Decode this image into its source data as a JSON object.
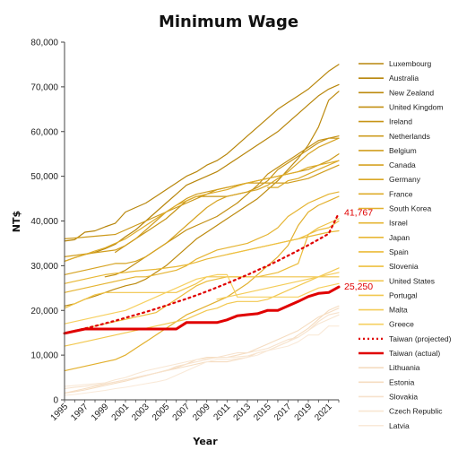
{
  "chart_data": {
    "type": "line",
    "title": "Minimum Wage",
    "xlabel": "Year",
    "ylabel": "NT$",
    "xlim": [
      1995,
      2022
    ],
    "ylim": [
      0,
      80000
    ],
    "grid": false,
    "legend": "right",
    "x": [
      1995,
      1996,
      1997,
      1998,
      1999,
      2000,
      2001,
      2002,
      2003,
      2004,
      2005,
      2006,
      2007,
      2008,
      2009,
      2010,
      2011,
      2012,
      2013,
      2014,
      2015,
      2016,
      2017,
      2018,
      2019,
      2020,
      2021,
      2022
    ],
    "x_ticks": [
      "1995",
      "1997",
      "1999",
      "2001",
      "2003",
      "2005",
      "2007",
      "2009",
      "2011",
      "2013",
      "2015",
      "2017",
      "2019",
      "2021"
    ],
    "y_ticks": [
      "0",
      "10,000",
      "20,000",
      "30,000",
      "40,000",
      "50,000",
      "60,000",
      "70,000",
      "80,000"
    ],
    "y_tick_values": [
      0,
      10000,
      20000,
      30000,
      40000,
      50000,
      60000,
      70000,
      80000
    ],
    "annotations": [
      {
        "text": "41,767",
        "x": 2022,
        "y": 41767,
        "color": "#e00000"
      },
      {
        "text": "25,250",
        "x": 2022,
        "y": 25250,
        "color": "#e00000"
      }
    ],
    "series": [
      {
        "name": "Luxembourg",
        "color": "#b8860b",
        "width": 1.2,
        "values": [
          35500,
          35800,
          37500,
          37800,
          38700,
          39500,
          42000,
          43000,
          44000,
          45500,
          47000,
          48500,
          50000,
          51000,
          52500,
          53500,
          55000,
          57000,
          59000,
          61000,
          63000,
          65000,
          66500,
          68000,
          69500,
          71500,
          73500,
          75000
        ]
      },
      {
        "name": "Australia",
        "color": "#b8860b",
        "width": 1.2,
        "values": [
          31000,
          31800,
          32500,
          33000,
          33800,
          34800,
          36500,
          38000,
          40000,
          42000,
          44000,
          46000,
          48000,
          49000,
          50000,
          51000,
          52500,
          54000,
          55500,
          57000,
          58500,
          60000,
          62000,
          64000,
          66000,
          68000,
          69500,
          70500
        ]
      },
      {
        "name": "New Zealand",
        "color": "#bd8a0e",
        "width": 1.2,
        "values": [
          21000,
          21500,
          22500,
          23200,
          24000,
          24800,
          25500,
          26000,
          27000,
          28500,
          30000,
          32000,
          34000,
          36000,
          37500,
          39000,
          40500,
          42000,
          43500,
          45000,
          47000,
          49000,
          51500,
          54000,
          57000,
          61000,
          67000,
          69000
        ]
      },
      {
        "name": "United Kingdom",
        "color": "#c28f12",
        "width": 1.2,
        "values": [
          null,
          null,
          null,
          null,
          27500,
          28000,
          29000,
          30500,
          32000,
          33500,
          35000,
          36500,
          38000,
          39000,
          40000,
          41000,
          42500,
          44000,
          46000,
          48000,
          50500,
          52000,
          53500,
          55000,
          56500,
          58000,
          58500,
          59000
        ]
      },
      {
        "name": "Ireland",
        "color": "#c79416",
        "width": 1.2,
        "values": [
          null,
          null,
          null,
          null,
          null,
          33000,
          34500,
          36000,
          37500,
          39000,
          40500,
          42500,
          44500,
          45500,
          45500,
          45500,
          45500,
          46000,
          46500,
          47500,
          49000,
          51500,
          53000,
          54500,
          56000,
          57500,
          58500,
          58500
        ]
      },
      {
        "name": "Netherlands",
        "color": "#cc991a",
        "width": 1.2,
        "values": [
          36000,
          36200,
          36400,
          36600,
          36800,
          37000,
          38000,
          39000,
          40000,
          41000,
          42000,
          43000,
          44000,
          45000,
          46000,
          47000,
          47500,
          48000,
          48500,
          49000,
          49500,
          50000,
          50500,
          51000,
          51500,
          52500,
          53500,
          55000
        ]
      },
      {
        "name": "Belgium",
        "color": "#d19e1e",
        "width": 1.2,
        "values": [
          32000,
          32300,
          32600,
          32900,
          33200,
          33500,
          34500,
          36000,
          38000,
          40000,
          42000,
          43500,
          45000,
          46000,
          46500,
          47000,
          47500,
          48000,
          48500,
          48500,
          48500,
          48500,
          48500,
          49000,
          49500,
          50500,
          51500,
          52500
        ]
      },
      {
        "name": "Canada",
        "color": "#d6a322",
        "width": 1.2,
        "values": [
          28000,
          28500,
          29000,
          29500,
          30000,
          30500,
          30500,
          31000,
          32000,
          33500,
          35000,
          37000,
          39000,
          41000,
          43000,
          44500,
          45500,
          46000,
          46500,
          47000,
          48000,
          49500,
          51000,
          53000,
          55000,
          56500,
          57500,
          58500
        ]
      },
      {
        "name": "Germany",
        "color": "#daa826",
        "width": 1.2,
        "values": [
          null,
          null,
          null,
          null,
          null,
          null,
          null,
          null,
          null,
          null,
          null,
          null,
          null,
          null,
          null,
          null,
          null,
          null,
          null,
          null,
          47500,
          47500,
          49000,
          49500,
          50500,
          51500,
          52500,
          53500
        ]
      },
      {
        "name": "France",
        "color": "#deac2a",
        "width": 1.2,
        "values": [
          31000,
          31800,
          32500,
          33300,
          34000,
          35000,
          36000,
          37500,
          39000,
          40500,
          42000,
          43500,
          44500,
          45500,
          46000,
          46500,
          47000,
          47800,
          48500,
          49000,
          49500,
          50000,
          50500,
          51000,
          52000,
          52500,
          53000,
          53500
        ]
      },
      {
        "name": "South Korea",
        "color": "#e2b02e",
        "width": 1.2,
        "values": [
          6500,
          7000,
          7500,
          8000,
          8500,
          9000,
          10000,
          11500,
          13000,
          14500,
          16000,
          17500,
          19000,
          20000,
          21000,
          22000,
          23000,
          24500,
          26000,
          28000,
          30000,
          32000,
          34500,
          39000,
          42000,
          43500,
          44500,
          45500
        ]
      },
      {
        "name": "Israel",
        "color": "#e5b432",
        "width": 1.2,
        "values": [
          24000,
          24500,
          25000,
          25500,
          26000,
          26500,
          27000,
          27500,
          27500,
          28000,
          28500,
          29000,
          30000,
          31500,
          32500,
          33500,
          34000,
          34500,
          35000,
          36000,
          37000,
          38500,
          41000,
          42500,
          44000,
          45000,
          46000,
          46500
        ]
      },
      {
        "name": "Japan",
        "color": "#e8b836",
        "width": 1.2,
        "values": [
          26000,
          26500,
          27000,
          27500,
          28000,
          28300,
          28500,
          28800,
          29000,
          29200,
          29500,
          29800,
          30200,
          30800,
          31500,
          32000,
          32500,
          33000,
          33500,
          34000,
          34500,
          35000,
          35500,
          36000,
          36500,
          37000,
          37500,
          37800
        ]
      },
      {
        "name": "Spain",
        "color": "#ebbc3a",
        "width": 1.2,
        "values": [
          15000,
          15500,
          16000,
          16500,
          17000,
          17500,
          18000,
          18500,
          19000,
          19500,
          21000,
          22500,
          24000,
          25500,
          26500,
          27000,
          27500,
          27500,
          27500,
          27500,
          28000,
          28500,
          29500,
          30500,
          37000,
          38000,
          38500,
          40000
        ]
      },
      {
        "name": "Slovenia",
        "color": "#eec040",
        "width": 1.2,
        "values": [
          null,
          null,
          null,
          null,
          null,
          null,
          null,
          null,
          null,
          null,
          null,
          null,
          null,
          null,
          null,
          null,
          32500,
          33000,
          33500,
          34000,
          34500,
          35000,
          35500,
          36000,
          37000,
          38500,
          39500,
          40500
        ]
      },
      {
        "name": "United States",
        "color": "#f0c448",
        "width": 1.2,
        "values": [
          20500,
          21500,
          22500,
          23500,
          24000,
          24000,
          24000,
          24000,
          24000,
          24000,
          24000,
          24000,
          25000,
          26000,
          27500,
          27500,
          27500,
          27500,
          27500,
          27500,
          27500,
          27500,
          27500,
          27500,
          27500,
          27500,
          27500,
          27500
        ]
      },
      {
        "name": "Portugal",
        "color": "#f2c850",
        "width": 1.2,
        "values": [
          12000,
          12500,
          13000,
          13500,
          14000,
          14500,
          15000,
          15500,
          16000,
          16500,
          17000,
          17500,
          18000,
          19000,
          20000,
          20500,
          21500,
          22000,
          22000,
          22000,
          22500,
          23500,
          24500,
          25500,
          26500,
          27500,
          28500,
          29500
        ]
      },
      {
        "name": "Malta",
        "color": "#f4cc58",
        "width": 1.2,
        "values": [
          null,
          null,
          null,
          null,
          null,
          null,
          null,
          null,
          null,
          null,
          null,
          null,
          null,
          null,
          null,
          22500,
          23000,
          23500,
          24000,
          24500,
          25000,
          25500,
          26000,
          26500,
          27000,
          27500,
          28000,
          28500
        ]
      },
      {
        "name": "Greece",
        "color": "#f6d060",
        "width": 1.2,
        "values": [
          17000,
          17500,
          18000,
          18500,
          19000,
          19500,
          20000,
          21000,
          22000,
          23000,
          24000,
          25000,
          26000,
          27000,
          27500,
          28000,
          28000,
          23000,
          23000,
          23000,
          23000,
          23000,
          23000,
          23000,
          24000,
          25000,
          25500,
          26000
        ]
      },
      {
        "name": "Taiwan (projected)",
        "color": "#e00000",
        "width": 2.2,
        "dashed": true,
        "values": [
          14880,
          15400,
          15950,
          16500,
          17100,
          17700,
          18350,
          19000,
          19650,
          20350,
          21100,
          21850,
          22600,
          23400,
          24250,
          25150,
          26050,
          27000,
          27950,
          29000,
          30000,
          31100,
          32250,
          33400,
          34600,
          35850,
          37150,
          41767
        ]
      },
      {
        "name": "Taiwan (actual)",
        "color": "#e00000",
        "width": 3,
        "values": [
          14880,
          15360,
          15840,
          15840,
          15840,
          15840,
          15840,
          15840,
          15840,
          15840,
          15840,
          15840,
          17280,
          17280,
          17280,
          17280,
          17880,
          18780,
          19047,
          19273,
          20008,
          20008,
          21009,
          22000,
          23100,
          23800,
          24000,
          25250
        ]
      },
      {
        "name": "Lithuania",
        "color": "#f5dcc0",
        "width": 1.1,
        "values": [
          1500,
          2000,
          2500,
          3000,
          3500,
          4000,
          4500,
          5000,
          5500,
          6000,
          6500,
          7000,
          7500,
          8000,
          8500,
          8500,
          8500,
          9000,
          9500,
          10500,
          11000,
          12000,
          13000,
          14500,
          16000,
          18000,
          20000,
          21000
        ]
      },
      {
        "name": "Estonia",
        "color": "#f5dcc0",
        "width": 1.1,
        "values": [
          1500,
          1800,
          2200,
          2700,
          3200,
          3700,
          4200,
          4800,
          5400,
          6000,
          6600,
          7200,
          8000,
          9000,
          9500,
          9500,
          9500,
          10000,
          10500,
          11500,
          12500,
          13500,
          14500,
          15500,
          17000,
          18500,
          19500,
          20500
        ]
      },
      {
        "name": "Slovakia",
        "color": "#f7e2cc",
        "width": 1.1,
        "values": [
          2500,
          2800,
          3000,
          3300,
          3600,
          4000,
          4500,
          5000,
          5500,
          6000,
          6500,
          7500,
          8000,
          8500,
          9000,
          9500,
          10000,
          10500,
          10500,
          11000,
          11500,
          12500,
          13500,
          14000,
          15500,
          17500,
          19000,
          19500
        ]
      },
      {
        "name": "Czech Republic",
        "color": "#f8e6d2",
        "width": 1.1,
        "values": [
          3000,
          3200,
          3400,
          3600,
          3800,
          4500,
          5000,
          5800,
          6500,
          7000,
          7500,
          8000,
          8500,
          9000,
          9200,
          9400,
          9500,
          9600,
          9800,
          10500,
          11000,
          12000,
          13000,
          14000,
          15500,
          17000,
          18000,
          19000
        ]
      },
      {
        "name": "Latvia",
        "color": "#f9e9d8",
        "width": 1.1,
        "values": [
          1000,
          1200,
          1500,
          1800,
          2100,
          2500,
          2800,
          3200,
          3600,
          4000,
          4500,
          5500,
          6500,
          7500,
          8500,
          9000,
          9000,
          9200,
          9500,
          10000,
          11000,
          11500,
          12000,
          13000,
          14500,
          14500,
          16500,
          16500
        ]
      }
    ]
  }
}
